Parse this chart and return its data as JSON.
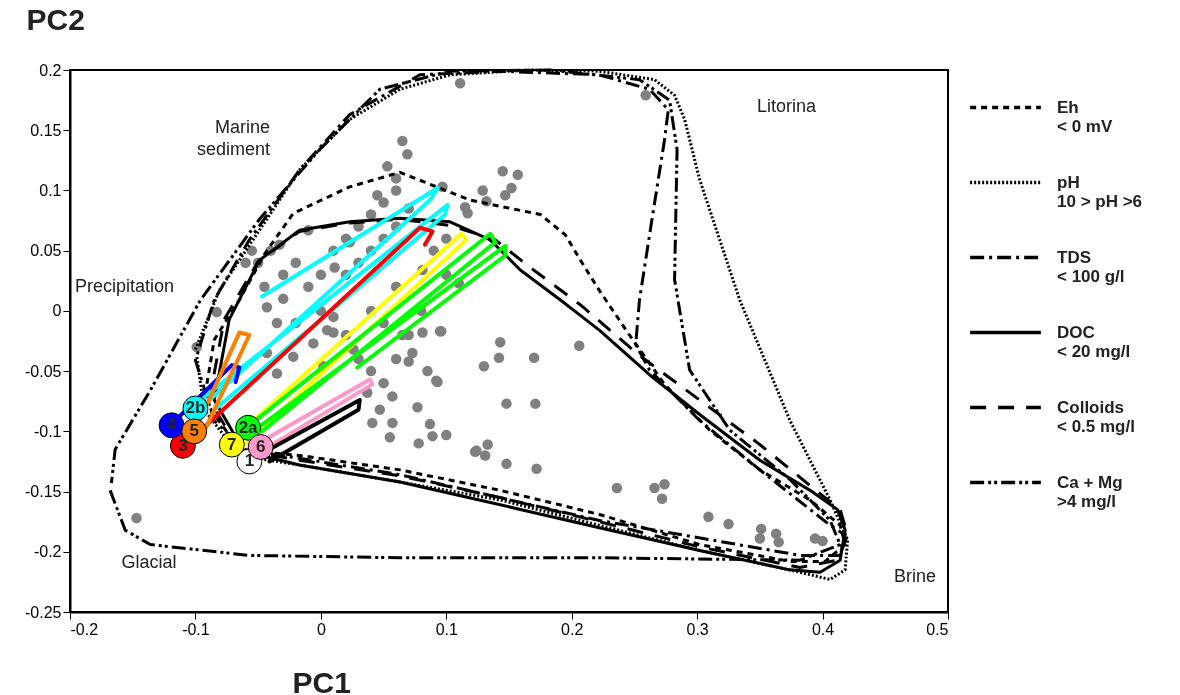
{
  "chart_data": {
    "type": "line",
    "xlabel": "PC1",
    "ylabel": "PC2",
    "xlim": [
      -0.2,
      0.5
    ],
    "ylim": [
      -0.25,
      0.2
    ],
    "xticks": [
      -0.2,
      -0.1,
      0,
      0.1,
      0.2,
      0.3,
      0.4,
      0.5
    ],
    "yticks": [
      -0.25,
      -0.2,
      -0.15,
      -0.1,
      -0.05,
      0,
      0.05,
      0.1,
      0.15,
      0.2
    ],
    "legend": "right",
    "series": [
      {
        "type": "scatter",
        "marker": "circle",
        "color": "#808080",
        "x": [
          0.111,
          0.065,
          0.069,
          0.053,
          0.145,
          0.129,
          0.147,
          0.045,
          0.115,
          0.023,
          -0.01,
          0.011,
          -0.033,
          0.081,
          0.095,
          0.081,
          0.143,
          -0.083,
          0.005,
          0.259,
          0.157,
          0.152,
          0.132,
          0.117,
          0.097,
          0.11,
          0.096,
          0.206,
          0.17,
          0.073,
          0.142,
          0.13,
          0.07,
          0.085,
          0.092,
          0.148,
          0.171,
          0.077,
          0.087,
          0.089,
          0.1,
          0.078,
          0.124,
          0.133,
          0.131,
          0.148,
          0.172,
          0.236,
          0.266,
          0.274,
          0.272,
          0.309,
          0.325,
          0.351,
          0.35,
          0.363,
          0.365,
          0.394,
          0.4,
          -0.147,
          0.065,
          0.093,
          0.123,
          0.057,
          0.055,
          0.047,
          0.057,
          0.041,
          0.037,
          -0.035,
          -0.022,
          -0.043,
          -0.006,
          0.01,
          0.002,
          0.026,
          -0.035,
          -0.043,
          -0.099,
          -0.05,
          -0.04,
          -0.03,
          -0.02,
          -0.045,
          -0.03,
          -0.01,
          0,
          0.01,
          0.02,
          0.03,
          0.04,
          0.05,
          0.06,
          0.07,
          0.02,
          0.03,
          0.04,
          0.05,
          0.06,
          0,
          -0.02,
          0.01,
          0.02,
          0.03,
          0.04,
          0.05,
          0.06,
          0.07,
          0.05,
          0.04,
          0.06,
          0.08,
          0.09,
          0.1,
          0.1,
          -0.06,
          -0.055,
          0.06
        ],
        "values": [
          0.189,
          0.141,
          0.13,
          0.12,
          0.116,
          0.1,
          0.096,
          0.096,
          0.086,
          0.057,
          0.067,
          0.036,
          0.055,
          0.034,
          -0.017,
          -0.018,
          -0.026,
          -0.001,
          -0.016,
          0.179,
          0.113,
          0.102,
          0.091,
          0.081,
          0.103,
          0.023,
          -0.017,
          -0.029,
          -0.039,
          -0.035,
          -0.039,
          -0.046,
          -0.042,
          -0.05,
          -0.058,
          -0.077,
          -0.077,
          -0.08,
          -0.094,
          -0.104,
          -0.103,
          -0.11,
          -0.116,
          -0.111,
          -0.12,
          -0.127,
          -0.131,
          -0.147,
          -0.147,
          -0.144,
          -0.156,
          -0.171,
          -0.177,
          -0.181,
          -0.189,
          -0.185,
          -0.192,
          -0.189,
          -0.191,
          -0.172,
          -0.02,
          -0.059,
          -0.117,
          -0.093,
          -0.105,
          -0.082,
          -0.071,
          -0.093,
          -0.068,
          -0.052,
          -0.038,
          -0.035,
          -0.027,
          -0.018,
          -0.046,
          -0.032,
          -0.01,
          0.003,
          -0.03,
          0.04,
          0.05,
          0.03,
          0.04,
          0.02,
          0.01,
          0.02,
          0.03,
          0.05,
          0.06,
          0.07,
          0.08,
          0.09,
          0.1,
          0.085,
          0.03,
          0.04,
          0.05,
          0.06,
          0.07,
          0,
          -0.01,
          -0.005,
          -0.02,
          -0.04,
          -0.05,
          -0.06,
          -0.04,
          -0.02,
          -0.01,
          0,
          0.02,
          0,
          0.05,
          0.06,
          0.03,
          0.04,
          0.05,
          0.11
        ]
      },
      {
        "name": "Eh\n< 0 mV",
        "color": "#000000",
        "line_style": "dashed",
        "x": [
          -0.065,
          -0.093,
          -0.085,
          -0.065,
          -0.045,
          -0.022,
          0.023,
          0.063,
          0.119,
          0.175,
          0.195,
          0.207,
          0.222,
          0.246,
          0.274,
          0.31,
          0.35,
          0.39,
          0.414,
          0.418,
          0.402,
          0.374,
          0.302,
          0.222,
          0.143,
          0.063,
          -0.017,
          -0.059
        ],
        "values": [
          -0.115,
          -0.074,
          -0.024,
          0.009,
          0.047,
          0.081,
          0.103,
          0.115,
          0.092,
          0.08,
          0.063,
          0.042,
          0.017,
          -0.02,
          -0.061,
          -0.099,
          -0.132,
          -0.157,
          -0.178,
          -0.194,
          -0.208,
          -0.208,
          -0.194,
          -0.169,
          -0.149,
          -0.132,
          -0.12,
          -0.116
        ]
      },
      {
        "name": "pH\n10 > pH >6",
        "color": "#000000",
        "line_style": "dotted",
        "x": [
          -0.1,
          -0.081,
          -0.049,
          -0.017,
          0.023,
          0.063,
          0.103,
          0.167,
          0.222,
          0.266,
          0.282,
          0.29,
          0.302,
          0.334,
          0.374,
          0.406,
          0.42,
          0.418,
          0.406,
          0.382,
          0.302,
          0.222,
          0.143,
          0.063,
          -0.017,
          -0.065,
          -0.093,
          -0.099
        ],
        "values": [
          -0.032,
          0.017,
          0.067,
          0.117,
          0.159,
          0.184,
          0.196,
          0.2,
          0.199,
          0.192,
          0.179,
          0.159,
          0.109,
          0.009,
          -0.091,
          -0.157,
          -0.19,
          -0.215,
          -0.223,
          -0.217,
          -0.199,
          -0.178,
          -0.157,
          -0.142,
          -0.128,
          -0.12,
          -0.082,
          -0.037
        ]
      },
      {
        "name": "TDS\n< 100 g/l",
        "color": "#000000",
        "line_style": "dashdot",
        "x": [
          -0.061,
          0.063,
          0.222,
          0.382,
          0.414,
          0.418,
          0.406,
          0.35,
          0.302,
          0.262,
          0.251,
          0.254,
          0.264,
          0.274,
          0.277,
          0.262,
          0.222,
          0.143,
          0.079,
          0.023,
          -0.017,
          -0.057,
          -0.085,
          -0.1,
          -0.085,
          -0.065
        ],
        "values": [
          -0.115,
          -0.136,
          -0.174,
          -0.203,
          -0.203,
          -0.186,
          -0.178,
          -0.132,
          -0.091,
          -0.049,
          -0.028,
          0.009,
          0.076,
          0.142,
          0.167,
          0.184,
          0.196,
          0.199,
          0.196,
          0.163,
          0.117,
          0.059,
          0.009,
          -0.041,
          -0.091,
          -0.111
        ]
      },
      {
        "name": "DOC\n< 20 mg/l",
        "color": "#000000",
        "line_style": "solid",
        "x": [
          -0.061,
          -0.085,
          -0.073,
          -0.049,
          -0.017,
          0.023,
          0.063,
          0.103,
          0.135,
          0.159,
          0.191,
          0.222,
          0.262,
          0.302,
          0.35,
          0.39,
          0.412,
          0.418,
          0.414,
          0.398,
          0.374,
          0.302,
          0.222,
          0.143,
          0.063,
          -0.017,
          -0.056
        ],
        "values": [
          -0.117,
          -0.074,
          -0.007,
          0.042,
          0.067,
          0.074,
          0.077,
          0.074,
          0.059,
          0.034,
          0.009,
          -0.016,
          -0.053,
          -0.086,
          -0.124,
          -0.149,
          -0.165,
          -0.182,
          -0.207,
          -0.217,
          -0.215,
          -0.199,
          -0.18,
          -0.161,
          -0.142,
          -0.128,
          -0.118
        ]
      },
      {
        "name": "Colloids\n< 0.5 mg/l",
        "color": "#000000",
        "line_style": "longdash",
        "x": [
          -0.065,
          -0.089,
          -0.077,
          -0.05,
          -0.017,
          0.023,
          0.063,
          0.103,
          0.139,
          0.167,
          0.207,
          0.254,
          0.302,
          0.35,
          0.39,
          0.414,
          0.42,
          0.412,
          0.382,
          0.302,
          0.222,
          0.143,
          0.063,
          -0.017,
          -0.06
        ],
        "values": [
          -0.115,
          -0.074,
          -0.007,
          0.041,
          0.066,
          0.073,
          0.076,
          0.071,
          0.059,
          0.036,
          0.005,
          -0.037,
          -0.074,
          -0.111,
          -0.145,
          -0.165,
          -0.186,
          -0.207,
          -0.213,
          -0.196,
          -0.175,
          -0.155,
          -0.137,
          -0.124,
          -0.116
        ]
      },
      {
        "name": "Ca + Mg\n>4 mg/l",
        "color": "#000000",
        "line_style": "dashdotdot",
        "x": [
          -0.168,
          -0.156,
          -0.136,
          -0.057,
          0.063,
          0.222,
          0.382,
          0.414,
          0.406,
          0.374,
          0.326,
          0.294,
          0.282,
          0.284,
          0.278,
          0.254,
          0.183,
          0.103,
          0.047,
          -0.001,
          -0.049,
          -0.096,
          -0.136,
          -0.164,
          -0.167
        ],
        "values": [
          -0.149,
          -0.182,
          -0.194,
          -0.203,
          -0.205,
          -0.205,
          -0.207,
          -0.194,
          -0.174,
          -0.14,
          -0.099,
          -0.049,
          0.026,
          0.134,
          0.175,
          0.192,
          0.2,
          0.199,
          0.184,
          0.134,
          0.076,
          0.009,
          -0.066,
          -0.115,
          -0.143
        ]
      },
      {
        "color": "#00ffff",
        "x": [
          -0.047,
          0.093,
          0.087,
          -0.093,
          -0.096,
          0.101,
          0.099,
          -0.085
        ],
        "values": [
          0.012,
          0.102,
          0.092,
          -0.078,
          -0.074,
          0.088,
          0.08,
          -0.082
        ]
      },
      {
        "color": "#ff0000",
        "x": [
          -0.108,
          0.079,
          0.089,
          0.083
        ],
        "values": [
          -0.111,
          0.069,
          0.066,
          0.055
        ]
      },
      {
        "color": "#ffff00",
        "x": [
          -0.071,
          0.112,
          0.116,
          -0.061
        ],
        "values": [
          -0.107,
          0.064,
          0.059,
          -0.111
        ]
      },
      {
        "color": "#00ff00",
        "x": [
          -0.057,
          0.135,
          0.139,
          -0.047,
          -0.05,
          0.147,
          0.147,
          0.029
        ],
        "values": [
          -0.095,
          0.064,
          0.057,
          -0.1,
          -0.097,
          0.054,
          0.046,
          -0.047
        ]
      },
      {
        "color": "#ff99cc",
        "x": [
          -0.045,
          0.039,
          0.041,
          -0.042
        ],
        "values": [
          -0.107,
          -0.057,
          -0.061,
          -0.113
        ]
      },
      {
        "color": "#000000",
        "x": [
          -0.05,
          0.031,
          0.03,
          -0.041
        ],
        "values": [
          -0.12,
          -0.074,
          -0.082,
          -0.125
        ]
      },
      {
        "color": "#0000ff",
        "x": [
          -0.116,
          -0.071,
          -0.065,
          -0.068
        ],
        "values": [
          -0.091,
          -0.045,
          -0.047,
          -0.059
        ]
      },
      {
        "color": "#ff8000",
        "x": [
          -0.1,
          -0.065,
          -0.057,
          -0.093
        ],
        "values": [
          -0.099,
          -0.018,
          -0.02,
          -0.1
        ]
      },
      {
        "type": "scatter",
        "marker": "circle",
        "name": "1",
        "color": "#ffffff",
        "x": [
          -0.057
        ],
        "values": [
          -0.125
        ]
      },
      {
        "type": "scatter",
        "marker": "circle",
        "name": "2a",
        "color": "#00ff00",
        "x": [
          -0.058
        ],
        "values": [
          -0.097
        ]
      },
      {
        "type": "scatter",
        "marker": "circle",
        "name": "2b",
        "color": "#00ffff",
        "x": [
          -0.1
        ],
        "values": [
          -0.081
        ]
      },
      {
        "type": "scatter",
        "marker": "circle",
        "name": "3",
        "color": "#ff0000",
        "x": [
          -0.11
        ],
        "values": [
          -0.112
        ]
      },
      {
        "type": "scatter",
        "marker": "circle",
        "name": "4",
        "color": "#0000ff",
        "x": [
          -0.119
        ],
        "values": [
          -0.095
        ]
      },
      {
        "type": "scatter",
        "marker": "circle",
        "name": "5",
        "color": "#ff8000",
        "x": [
          -0.101
        ],
        "values": [
          -0.1
        ]
      },
      {
        "type": "scatter",
        "marker": "circle",
        "name": "6",
        "color": "#ff99cc",
        "x": [
          -0.048
        ],
        "values": [
          -0.113
        ]
      },
      {
        "type": "scatter",
        "marker": "circle",
        "name": "7",
        "color": "#ffff00",
        "x": [
          -0.071
        ],
        "values": [
          -0.111
        ]
      }
    ],
    "annotations": [
      "Marine\nsediment",
      "Precipitation",
      "Litorina",
      "Glacial",
      "Brine"
    ]
  }
}
